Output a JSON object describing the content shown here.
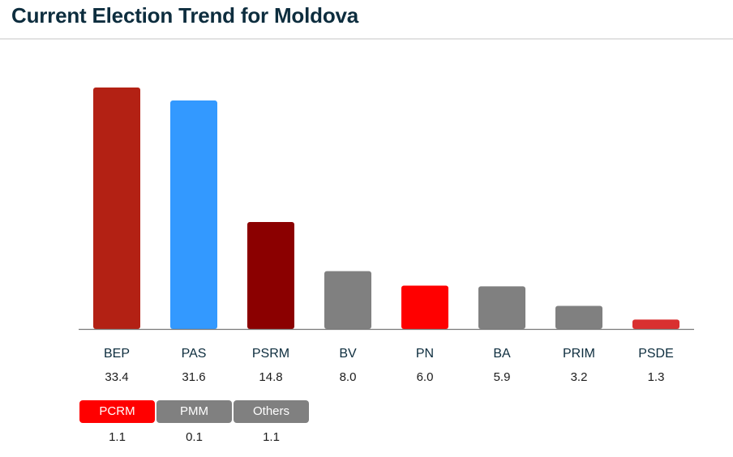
{
  "page": {
    "title": "Current Election Trend for Moldova"
  },
  "chart_data": {
    "type": "bar",
    "title": "Current Election Trend for Moldova",
    "categories": [
      "BEP",
      "PAS",
      "PSRM",
      "BV",
      "PN",
      "BA",
      "PRIM",
      "PSDE"
    ],
    "values": [
      33.4,
      31.6,
      14.8,
      8.0,
      6.0,
      5.9,
      3.2,
      1.3
    ],
    "value_labels": [
      "33.4",
      "31.6",
      "14.8",
      "8.0",
      "6.0",
      "5.9",
      "3.2",
      "1.3"
    ],
    "colors": [
      "#b32114",
      "#3399ff",
      "#8b0000",
      "#808080",
      "#ff0000",
      "#808080",
      "#808080",
      "#d93030"
    ],
    "ylim": [
      0,
      35
    ],
    "xlabel": "",
    "ylabel": "",
    "grid": false,
    "small_parties": [
      {
        "name": "PCRM",
        "value": 1.1,
        "value_label": "1.1",
        "color": "#ff0000"
      },
      {
        "name": "PMM",
        "value": 0.1,
        "value_label": "0.1",
        "color": "#808080"
      },
      {
        "name": "Others",
        "value": 1.1,
        "value_label": "1.1",
        "color": "#808080"
      }
    ]
  }
}
